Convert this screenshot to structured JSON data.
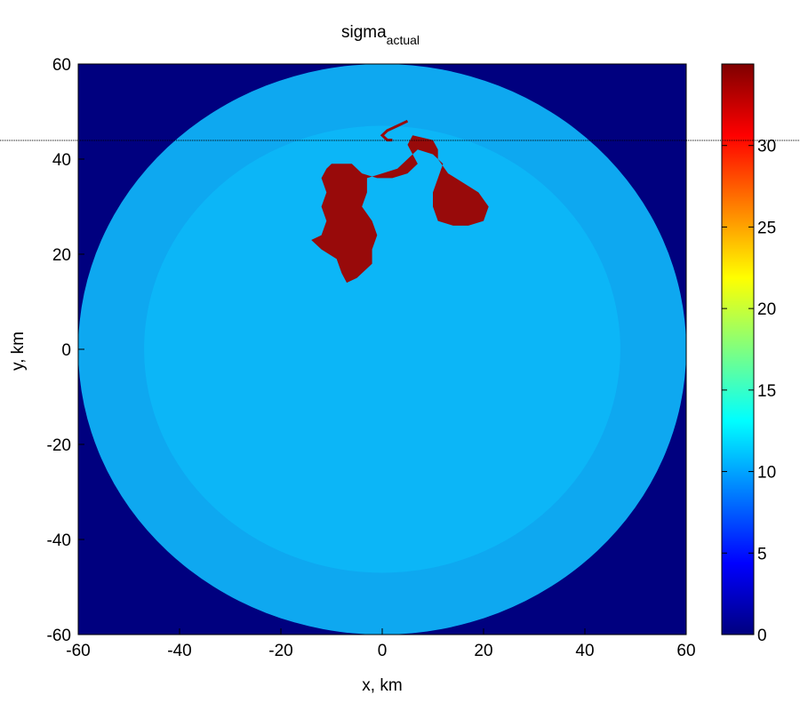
{
  "chart_data": {
    "type": "heatmap",
    "title": "sigma",
    "title_subscript": "actual",
    "xlabel": "x, km",
    "ylabel": "y, km",
    "xlim": [
      -60,
      60
    ],
    "ylim": [
      -60,
      60
    ],
    "x_ticks": [
      -60,
      -40,
      -20,
      0,
      20,
      40,
      60
    ],
    "y_ticks": [
      60,
      40,
      20,
      0,
      -20,
      -40,
      -60
    ],
    "x_tick_labels": [
      "-60",
      "-40",
      "-20",
      "0",
      "20",
      "40",
      "60"
    ],
    "y_tick_labels": [
      "60",
      "40",
      "20",
      "0",
      "-20",
      "-40",
      "-60"
    ],
    "colorbar": {
      "range": [
        0,
        35
      ],
      "ticks": [
        0,
        5,
        10,
        15,
        20,
        25,
        30
      ],
      "tick_labels": [
        "0",
        "5",
        "10",
        "15",
        "20",
        "25",
        "30"
      ],
      "colormap": "jet"
    },
    "grid": false,
    "regions": [
      {
        "shape": "background",
        "value": 0
      },
      {
        "shape": "disk",
        "center": [
          0,
          0
        ],
        "radius_km": 60,
        "value": 9.5
      },
      {
        "shape": "disk",
        "center": [
          0,
          0
        ],
        "radius_km": 47,
        "value": 10.5
      },
      {
        "shape": "blob",
        "value": 35,
        "outline_km": [
          [
            -10,
            39
          ],
          [
            -6,
            39
          ],
          [
            -4,
            37
          ],
          [
            -1,
            36
          ],
          [
            2,
            36
          ],
          [
            5,
            37
          ],
          [
            7,
            39
          ],
          [
            6,
            41
          ],
          [
            5,
            43
          ],
          [
            6,
            45
          ],
          [
            10,
            44
          ],
          [
            11,
            42
          ],
          [
            11,
            40
          ],
          [
            13,
            37
          ],
          [
            16,
            35
          ],
          [
            19,
            33
          ],
          [
            21,
            30
          ],
          [
            20,
            27
          ],
          [
            17,
            26
          ],
          [
            14,
            26
          ],
          [
            11,
            27
          ],
          [
            10,
            30
          ],
          [
            10,
            33
          ],
          [
            11,
            36
          ],
          [
            12,
            39
          ],
          [
            10,
            41
          ],
          [
            7,
            42
          ],
          [
            5,
            40
          ],
          [
            3,
            38
          ],
          [
            0,
            37
          ],
          [
            -3,
            36
          ],
          [
            -3,
            33
          ],
          [
            -4,
            30
          ],
          [
            -2,
            27
          ],
          [
            -1,
            24
          ],
          [
            -2,
            21
          ],
          [
            -2,
            18
          ],
          [
            -5,
            15
          ],
          [
            -7,
            14
          ],
          [
            -8,
            16
          ],
          [
            -9,
            19
          ],
          [
            -12,
            21
          ],
          [
            -14,
            23
          ],
          [
            -12,
            24
          ],
          [
            -11,
            27
          ],
          [
            -12,
            30
          ],
          [
            -11,
            33
          ],
          [
            -12,
            36
          ],
          [
            -11,
            38
          ]
        ]
      },
      {
        "shape": "thin-line",
        "value": 35,
        "path_km": [
          [
            5,
            48
          ],
          [
            3,
            47
          ],
          [
            1,
            46
          ],
          [
            0,
            45
          ],
          [
            1,
            44
          ],
          [
            2,
            44
          ]
        ]
      }
    ]
  }
}
